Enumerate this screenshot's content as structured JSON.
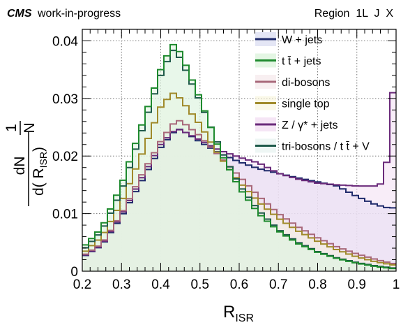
{
  "header": {
    "experiment": "CMS",
    "status": "work-in-progress",
    "region_label": "Region  1L  J  X"
  },
  "chart_data": {
    "type": "step-histogram",
    "xlabel_main": "R",
    "xlabel_sub": "ISR",
    "ylabel_num_top": "1",
    "ylabel_num_bottom": "N",
    "ylabel_frac_top": "dN",
    "ylabel_frac_bottom_prefix": "d( R",
    "ylabel_frac_bottom_sub": "ISR",
    "ylabel_frac_bottom_suffix": ")",
    "xlim": [
      0.2,
      1.0
    ],
    "ylim": [
      0,
      0.042
    ],
    "grid": true,
    "legend_position": "top-right",
    "x_ticks": [
      0.2,
      0.3,
      0.4,
      0.5,
      0.6,
      0.7,
      0.8,
      0.9,
      1.0
    ],
    "x_tick_labels": [
      "0.2",
      "0.3",
      "0.4",
      "0.5",
      "0.6",
      "0.7",
      "0.8",
      "0.9",
      "1"
    ],
    "y_ticks": [
      0,
      0.01,
      0.02,
      0.03,
      0.04
    ],
    "y_tick_labels": [
      "0",
      "0.01",
      "0.02",
      "0.03",
      "0.04"
    ],
    "n_bins": 50,
    "series": [
      {
        "name": "W + jets",
        "color": "#1f2a6b",
        "fill": "#e4e6f5",
        "fill_opacity": 0.75,
        "control_points": [
          [
            0.2,
            0.0024
          ],
          [
            0.25,
            0.0045
          ],
          [
            0.3,
            0.0095
          ],
          [
            0.35,
            0.0155
          ],
          [
            0.4,
            0.0215
          ],
          [
            0.43,
            0.024
          ],
          [
            0.45,
            0.0247
          ],
          [
            0.5,
            0.0225
          ],
          [
            0.55,
            0.0205
          ],
          [
            0.6,
            0.019
          ],
          [
            0.65,
            0.0178
          ],
          [
            0.7,
            0.017
          ],
          [
            0.75,
            0.0162
          ],
          [
            0.8,
            0.0155
          ],
          [
            0.85,
            0.0148
          ],
          [
            0.9,
            0.013
          ],
          [
            0.95,
            0.0115
          ],
          [
            0.98,
            0.011
          ],
          [
            1.0,
            0.011
          ]
        ]
      },
      {
        "name": "t t̄ + jets",
        "color": "#1e8a2e",
        "fill": "#dff5df",
        "fill_opacity": 0.6,
        "control_points": [
          [
            0.2,
            0.004
          ],
          [
            0.25,
            0.0075
          ],
          [
            0.3,
            0.015
          ],
          [
            0.35,
            0.025
          ],
          [
            0.4,
            0.035
          ],
          [
            0.43,
            0.0395
          ],
          [
            0.45,
            0.038
          ],
          [
            0.5,
            0.03
          ],
          [
            0.55,
            0.021
          ],
          [
            0.6,
            0.0145
          ],
          [
            0.65,
            0.01
          ],
          [
            0.7,
            0.007
          ],
          [
            0.75,
            0.0048
          ],
          [
            0.8,
            0.0033
          ],
          [
            0.85,
            0.0022
          ],
          [
            0.9,
            0.0014
          ],
          [
            0.95,
            0.0008
          ],
          [
            1.0,
            0.0004
          ]
        ]
      },
      {
        "name": "di-bosons",
        "color": "#a8687a",
        "fill": "#f5e6ea",
        "fill_opacity": 0.4,
        "control_points": [
          [
            0.2,
            0.0026
          ],
          [
            0.25,
            0.0048
          ],
          [
            0.3,
            0.01
          ],
          [
            0.35,
            0.0165
          ],
          [
            0.4,
            0.0225
          ],
          [
            0.43,
            0.0255
          ],
          [
            0.45,
            0.0262
          ],
          [
            0.5,
            0.0235
          ],
          [
            0.55,
            0.02
          ],
          [
            0.6,
            0.0165
          ],
          [
            0.65,
            0.013
          ],
          [
            0.7,
            0.01
          ],
          [
            0.75,
            0.0077
          ],
          [
            0.8,
            0.0058
          ],
          [
            0.85,
            0.0042
          ],
          [
            0.9,
            0.003
          ],
          [
            0.95,
            0.002
          ],
          [
            1.0,
            0.0012
          ]
        ]
      },
      {
        "name": "single top",
        "color": "#a08a2a",
        "fill": "#f8f4dc",
        "fill_opacity": 0.4,
        "control_points": [
          [
            0.2,
            0.003
          ],
          [
            0.25,
            0.006
          ],
          [
            0.3,
            0.012
          ],
          [
            0.35,
            0.02
          ],
          [
            0.4,
            0.0285
          ],
          [
            0.43,
            0.031
          ],
          [
            0.45,
            0.03
          ],
          [
            0.5,
            0.0255
          ],
          [
            0.55,
            0.02
          ],
          [
            0.6,
            0.0155
          ],
          [
            0.65,
            0.012
          ],
          [
            0.7,
            0.0092
          ],
          [
            0.75,
            0.007
          ],
          [
            0.8,
            0.0052
          ],
          [
            0.85,
            0.0037
          ],
          [
            0.9,
            0.0025
          ],
          [
            0.95,
            0.0016
          ],
          [
            1.0,
            0.001
          ]
        ]
      },
      {
        "name": "Z / γ* + jets",
        "color": "#6a2a7a",
        "fill": "#f2dcf2",
        "fill_opacity": 0.5,
        "control_points": [
          [
            0.2,
            0.0025
          ],
          [
            0.25,
            0.0046
          ],
          [
            0.3,
            0.0098
          ],
          [
            0.35,
            0.016
          ],
          [
            0.4,
            0.022
          ],
          [
            0.43,
            0.0242
          ],
          [
            0.45,
            0.0246
          ],
          [
            0.5,
            0.0228
          ],
          [
            0.55,
            0.021
          ],
          [
            0.6,
            0.0198
          ],
          [
            0.65,
            0.0188
          ],
          [
            0.7,
            0.017
          ],
          [
            0.75,
            0.016
          ],
          [
            0.8,
            0.0153
          ],
          [
            0.85,
            0.015
          ],
          [
            0.9,
            0.0148
          ],
          [
            0.95,
            0.0148
          ],
          [
            0.97,
            0.0155
          ],
          [
            0.985,
            0.024
          ],
          [
            0.995,
            0.034
          ],
          [
            1.0,
            0.0345
          ]
        ]
      },
      {
        "name": "tri-bosons / t t̄ + V",
        "color": "#1f5a4a",
        "fill": "#e0eeeb",
        "fill_opacity": 0.3,
        "control_points": [
          [
            0.2,
            0.0035
          ],
          [
            0.25,
            0.007
          ],
          [
            0.3,
            0.014
          ],
          [
            0.35,
            0.024
          ],
          [
            0.4,
            0.034
          ],
          [
            0.43,
            0.0385
          ],
          [
            0.45,
            0.037
          ],
          [
            0.5,
            0.0295
          ],
          [
            0.55,
            0.0215
          ],
          [
            0.6,
            0.015
          ],
          [
            0.65,
            0.0105
          ],
          [
            0.7,
            0.0072
          ],
          [
            0.75,
            0.005
          ],
          [
            0.8,
            0.0034
          ],
          [
            0.85,
            0.0023
          ],
          [
            0.9,
            0.0015
          ],
          [
            0.95,
            0.0009
          ],
          [
            1.0,
            0.0005
          ]
        ]
      }
    ]
  }
}
